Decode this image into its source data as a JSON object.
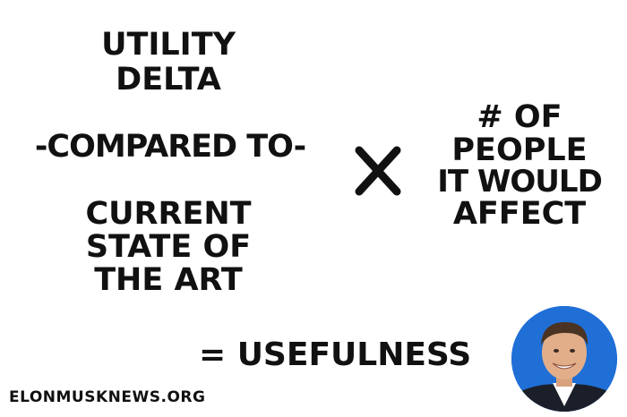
{
  "formula": {
    "utility_line_1": "UTILITY",
    "utility_line_2": "DELTA",
    "compared": "-COMPARED TO-",
    "state_line_1": "CURRENT",
    "state_line_2": "STATE OF",
    "state_line_3": "THE ART",
    "people_line_1": "# OF",
    "people_line_2": "PEOPLE",
    "people_line_3": "IT WOULD",
    "people_line_4": "AFFECT",
    "result": "= USEFULNESS"
  },
  "footer": {
    "source": "ELONMUSKNEWS.ORG"
  },
  "icons": {
    "operator": "multiply-icon",
    "portrait": "avatar"
  },
  "colors": {
    "text": "#111111",
    "background": "#ffffff",
    "avatar_background": "#1f6fd6"
  }
}
